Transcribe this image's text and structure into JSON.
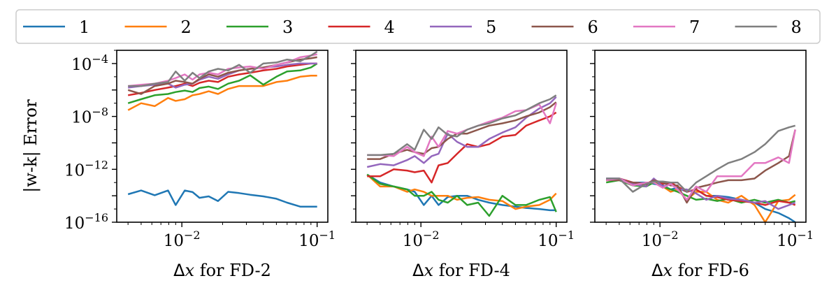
{
  "chart_data": {
    "type": "line",
    "y_scale": "log",
    "x_scale": "log",
    "ylabel": "|w-k| Error",
    "ylim": [
      1e-16,
      0.001
    ],
    "xlim": [
      0.0033,
      0.12
    ],
    "legend": {
      "placement": "top",
      "entries": [
        "1",
        "2",
        "3",
        "4",
        "5",
        "6",
        "7",
        "8"
      ]
    },
    "colors": {
      "1": "#1f77b4",
      "2": "#ff7f0e",
      "3": "#2ca02c",
      "4": "#d62728",
      "5": "#9467bd",
      "6": "#8c564b",
      "7": "#e377c2",
      "8": "#7f7f7f"
    },
    "x_ticks": [
      {
        "value": 0.01,
        "base": "10",
        "exp": "−2"
      },
      {
        "value": 0.1,
        "base": "10",
        "exp": "−1"
      }
    ],
    "y_ticks": [
      {
        "value": 0.0001,
        "base": "10",
        "exp": "−4"
      },
      {
        "value": 1e-08,
        "base": "10",
        "exp": "−8"
      },
      {
        "value": 1e-12,
        "base": "10",
        "exp": "−12"
      },
      {
        "value": 1e-16,
        "base": "10",
        "exp": "−16"
      }
    ],
    "x": [
      0.004,
      0.005,
      0.0063,
      0.0079,
      0.009,
      0.0105,
      0.012,
      0.0135,
      0.0158,
      0.0185,
      0.022,
      0.0265,
      0.032,
      0.04,
      0.05,
      0.06,
      0.075,
      0.09,
      0.1
    ],
    "panels": [
      {
        "xlabel_prefix": "Δ",
        "xlabel_var": "x",
        "xlabel_suffix": " for FD-2",
        "series": [
          {
            "name": "1",
            "values": [
              1.3e-14,
              2.5e-14,
              1.1e-14,
              2.5e-14,
              2e-15,
              2.5e-14,
              1.9e-14,
              7e-15,
              9e-15,
              4e-15,
              2e-14,
              1.6e-14,
              1.2e-14,
              9e-15,
              6e-15,
              3e-15,
              1.5e-15,
              1.5e-15,
              1.5e-15
            ]
          },
          {
            "name": "2",
            "values": [
              3e-08,
              1e-07,
              6e-08,
              2.5e-07,
              1.5e-07,
              2e-07,
              4e-07,
              5e-07,
              8e-07,
              5e-07,
              1.2e-06,
              2e-06,
              2e-06,
              2e-06,
              4e-06,
              5e-06,
              1e-05,
              1.2e-05,
              1.2e-05
            ]
          },
          {
            "name": "3",
            "values": [
              1e-07,
              2e-07,
              4e-07,
              5e-07,
              7e-07,
              9e-07,
              7e-07,
              1.4e-06,
              1.8e-06,
              1.2e-06,
              3e-06,
              5e-06,
              1.3e-05,
              2.5e-06,
              1e-05,
              2.5e-05,
              3e-05,
              5e-05,
              0.0001
            ]
          },
          {
            "name": "4",
            "values": [
              4e-07,
              6e-07,
              1e-06,
              1.5e-06,
              2e-06,
              3e-06,
              2e-06,
              3.5e-06,
              5e-06,
              4e-06,
              1e-05,
              1.5e-05,
              2e-05,
              3e-05,
              4e-05,
              6e-05,
              8e-05,
              0.0001,
              0.0001
            ]
          },
          {
            "name": "5",
            "values": [
              1.5e-06,
              2e-06,
              2.5e-06,
              3e-06,
              1.5e-06,
              2.5e-06,
              3e-06,
              6e-06,
              1e-05,
              7e-06,
              1.5e-05,
              3e-05,
              4e-05,
              5e-05,
              6e-05,
              8e-05,
              0.0001,
              0.0001,
              0.0001
            ]
          },
          {
            "name": "6",
            "values": [
              1e-06,
              5e-07,
              2e-06,
              3e-06,
              5e-06,
              4e-06,
              3e-06,
              7e-06,
              1.5e-05,
              1e-05,
              2e-05,
              3e-05,
              4e-05,
              5e-05,
              8e-05,
              0.00012,
              0.0002,
              0.00025,
              0.0003
            ]
          },
          {
            "name": "7",
            "values": [
              2e-06,
              2.5e-06,
              3e-06,
              5e-06,
              8e-06,
              1.5e-05,
              6e-06,
              1.5e-05,
              2e-05,
              1.5e-05,
              4e-05,
              5e-05,
              6e-05,
              4e-05,
              8e-05,
              0.00012,
              0.0003,
              0.0004,
              0.0005
            ]
          },
          {
            "name": "8",
            "values": [
              2e-06,
              2e-06,
              3e-06,
              4e-06,
              2.5e-05,
              5e-06,
              2e-05,
              8e-06,
              2.5e-05,
              4e-05,
              3e-05,
              8e-05,
              2e-05,
              0.0001,
              0.00012,
              0.0002,
              0.00015,
              0.0004,
              0.0008
            ]
          }
        ]
      },
      {
        "xlabel_prefix": "Δ",
        "xlabel_var": "x",
        "xlabel_suffix": " for FD-4",
        "series": [
          {
            "name": "1",
            "values": [
              4e-13,
              1e-13,
              5e-14,
              3e-14,
              2e-14,
              2e-15,
              1e-14,
              2e-15,
              8e-15,
              1e-14,
              1e-14,
              5e-15,
              3e-15,
              2e-15,
              1.5e-15,
              1.2e-15,
              1e-15,
              8e-16,
              8e-16
            ]
          },
          {
            "name": "2",
            "values": [
              4e-13,
              5e-14,
              5e-14,
              2e-14,
              3e-14,
              2e-14,
              1e-14,
              1e-14,
              1e-14,
              5e-15,
              7e-15,
              8e-15,
              5e-15,
              4e-15,
              1e-15,
              1.5e-15,
              2e-15,
              5e-15,
              1.5e-14
            ]
          },
          {
            "name": "3",
            "values": [
              4e-13,
              8e-14,
              5e-14,
              3e-14,
              1e-14,
              1e-14,
              2e-14,
              5e-15,
              3e-15,
              1e-14,
              2e-15,
              3e-15,
              3e-16,
              1e-14,
              2e-15,
              2e-15,
              5e-15,
              8e-15,
              6e-16
            ]
          },
          {
            "name": "4",
            "values": [
              3e-13,
              3e-13,
              1e-12,
              8e-13,
              6e-13,
              8e-13,
              1e-13,
              2e-12,
              3e-12,
              1.5e-11,
              8e-11,
              5e-11,
              8e-11,
              3e-10,
              4e-10,
              2e-09,
              5e-09,
              1e-08,
              2e-08
            ]
          },
          {
            "name": "5",
            "values": [
              1.5e-12,
              2.5e-12,
              2e-12,
              5e-12,
              1e-11,
              3e-12,
              1e-11,
              1.5e-11,
              5e-10,
              1.2e-10,
              5e-11,
              5e-11,
              2e-10,
              6e-10,
              1.5e-09,
              8e-09,
              4e-08,
              1e-07,
              3e-07
            ]
          },
          {
            "name": "6",
            "values": [
              6e-12,
              6e-12,
              1.5e-11,
              3e-11,
              2e-11,
              1.5e-11,
              4e-11,
              5e-11,
              2e-10,
              5e-10,
              5e-10,
              1e-09,
              2e-09,
              3e-09,
              5e-09,
              1e-08,
              2e-08,
              5e-08,
              1.2e-07
            ]
          },
          {
            "name": "7",
            "values": [
              1.2e-11,
              1.2e-11,
              1e-11,
              5e-11,
              2e-11,
              1e-11,
              3e-10,
              5e-11,
              8e-10,
              5e-10,
              1e-09,
              2e-09,
              4e-09,
              8e-09,
              2.5e-08,
              3e-08,
              8e-08,
              3e-09,
              1e-07
            ]
          },
          {
            "name": "8",
            "values": [
              1.2e-11,
              1.2e-11,
              1.5e-11,
              8e-11,
              3e-11,
              1e-09,
              2e-10,
              1.5e-09,
              4e-10,
              3e-10,
              1e-09,
              2e-09,
              3e-09,
              7e-09,
              1.2e-08,
              3e-08,
              1e-07,
              2e-07,
              4e-07
            ]
          }
        ]
      },
      {
        "xlabel_prefix": "Δ",
        "xlabel_var": "x",
        "xlabel_suffix": " for FD-6",
        "series": [
          {
            "name": "1",
            "values": [
              2e-13,
              2e-13,
              1e-13,
              1e-13,
              8e-14,
              6e-14,
              3e-14,
              4e-14,
              2e-14,
              3e-14,
              1e-14,
              1e-14,
              8e-15,
              5e-15,
              3e-15,
              1e-15,
              5e-16,
              2e-16,
              1e-16
            ]
          },
          {
            "name": "2",
            "values": [
              1.5e-13,
              1.5e-13,
              1e-13,
              8e-14,
              1.5e-13,
              5e-14,
              2e-14,
              3e-14,
              5e-15,
              2e-14,
              2e-14,
              5e-15,
              3e-15,
              1e-14,
              2e-15,
              1e-16,
              4e-15,
              5e-15,
              1.2e-14
            ]
          },
          {
            "name": "3",
            "values": [
              1e-13,
              1.5e-13,
              6e-14,
              5e-14,
              1e-13,
              5e-14,
              3e-14,
              2e-14,
              1e-14,
              5e-15,
              6e-15,
              4e-15,
              6e-15,
              3e-15,
              5e-15,
              3e-15,
              5e-15,
              3e-15,
              4e-15
            ]
          },
          {
            "name": "4",
            "values": [
              1.5e-13,
              2e-13,
              1e-13,
              8e-14,
              1.5e-13,
              8e-14,
              1e-13,
              5e-14,
              2e-14,
              3e-14,
              1e-14,
              8e-15,
              5e-15,
              4e-15,
              3e-15,
              2e-15,
              4e-15,
              3e-15,
              2e-15
            ]
          },
          {
            "name": "5",
            "values": [
              2e-13,
              2e-13,
              8e-14,
              5e-14,
              2e-13,
              5e-14,
              8e-14,
              3e-14,
              3e-14,
              1.5e-14,
              5e-15,
              1e-14,
              6e-15,
              5e-15,
              3e-15,
              4e-15,
              1e-15,
              2e-15,
              3e-15
            ]
          },
          {
            "name": "6",
            "values": [
              1.5e-13,
              1.5e-13,
              1e-13,
              7e-14,
              1.5e-13,
              1e-13,
              6e-14,
              6e-14,
              3e-15,
              4e-14,
              6e-14,
              1e-13,
              1.5e-13,
              1.5e-13,
              2e-13,
              8e-13,
              3e-12,
              1e-11,
              1e-09
            ]
          },
          {
            "name": "7",
            "values": [
              1.5e-13,
              2e-13,
              6e-14,
              1e-13,
              1e-13,
              4e-14,
              8e-14,
              3e-14,
              5e-15,
              5e-14,
              2e-14,
              3e-13,
              3e-13,
              3e-13,
              3e-12,
              3e-12,
              8e-12,
              3e-12,
              1e-09
            ]
          },
          {
            "name": "8",
            "values": [
              2e-13,
              2e-13,
              2e-14,
              8e-14,
              1.2e-13,
              1.2e-13,
              1e-13,
              1e-13,
              2e-14,
              1e-13,
              3e-13,
              1e-12,
              3e-12,
              6e-12,
              2e-11,
              8e-11,
              8e-10,
              1.5e-09,
              2e-09
            ]
          }
        ]
      }
    ]
  }
}
